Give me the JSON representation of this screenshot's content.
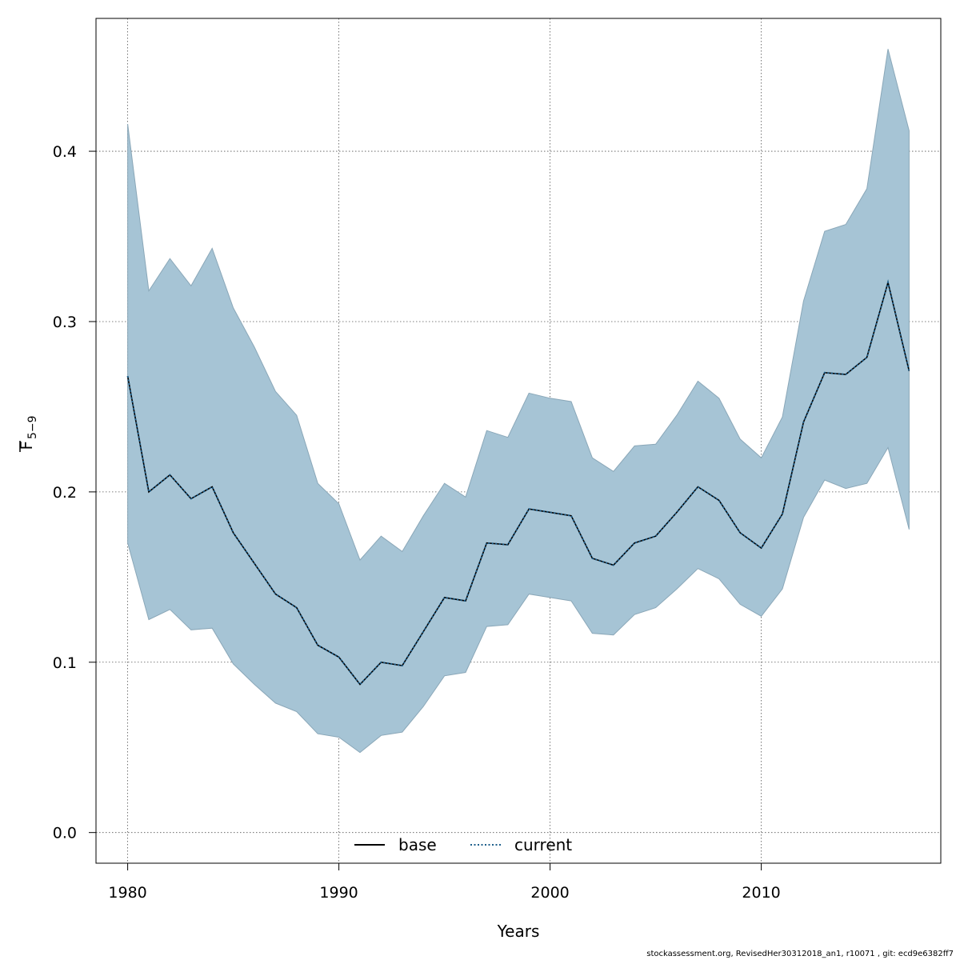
{
  "chart_data": {
    "type": "line",
    "title": "",
    "xlabel": "Years",
    "ylabel_main": "F",
    "ylabel_sub": "5−9",
    "xlim": [
      1978.5,
      2018.5
    ],
    "ylim": [
      -0.018,
      0.478
    ],
    "xticks": [
      1980,
      1990,
      2000,
      2010
    ],
    "yticks": [
      0.0,
      0.1,
      0.2,
      0.3,
      0.4
    ],
    "ytick_labels": [
      "0.0",
      "0.1",
      "0.2",
      "0.3",
      "0.4"
    ],
    "grid": true,
    "legend_position": "bottom-center",
    "x": [
      1980,
      1981,
      1982,
      1983,
      1984,
      1985,
      1986,
      1987,
      1988,
      1989,
      1990,
      1991,
      1992,
      1993,
      1994,
      1995,
      1996,
      1997,
      1998,
      1999,
      2000,
      2001,
      2002,
      2003,
      2004,
      2005,
      2006,
      2007,
      2008,
      2009,
      2010,
      2011,
      2012,
      2013,
      2014,
      2015,
      2016,
      2017
    ],
    "band_upper": [
      0.416,
      0.318,
      0.337,
      0.321,
      0.343,
      0.308,
      0.285,
      0.259,
      0.245,
      0.205,
      0.193,
      0.16,
      0.174,
      0.165,
      0.186,
      0.205,
      0.197,
      0.236,
      0.232,
      0.258,
      0.255,
      0.253,
      0.22,
      0.212,
      0.227,
      0.228,
      0.245,
      0.265,
      0.255,
      0.231,
      0.22,
      0.244,
      0.312,
      0.353,
      0.357,
      0.378,
      0.46,
      0.412
    ],
    "band_lower": [
      0.17,
      0.125,
      0.131,
      0.119,
      0.12,
      0.099,
      0.087,
      0.076,
      0.071,
      0.058,
      0.056,
      0.047,
      0.057,
      0.059,
      0.074,
      0.092,
      0.094,
      0.121,
      0.122,
      0.14,
      0.138,
      0.136,
      0.117,
      0.116,
      0.128,
      0.132,
      0.143,
      0.155,
      0.149,
      0.134,
      0.127,
      0.143,
      0.185,
      0.207,
      0.202,
      0.205,
      0.226,
      0.178
    ],
    "series": [
      {
        "name": "base",
        "color": "#000000",
        "dash": "solid",
        "values": [
          0.268,
          0.2,
          0.21,
          0.196,
          0.203,
          0.176,
          0.158,
          0.14,
          0.132,
          0.11,
          0.103,
          0.087,
          0.1,
          0.098,
          0.118,
          0.138,
          0.136,
          0.17,
          0.169,
          0.19,
          0.188,
          0.186,
          0.161,
          0.157,
          0.17,
          0.174,
          0.188,
          0.203,
          0.195,
          0.176,
          0.167,
          0.187,
          0.241,
          0.27,
          0.269,
          0.279,
          0.323,
          0.271
        ]
      },
      {
        "name": "current",
        "color": "#1f5f8b",
        "dash": "dotted",
        "values": [
          0.268,
          0.2,
          0.21,
          0.196,
          0.203,
          0.176,
          0.158,
          0.14,
          0.132,
          0.11,
          0.103,
          0.087,
          0.1,
          0.098,
          0.118,
          0.138,
          0.136,
          0.17,
          0.169,
          0.19,
          0.188,
          0.186,
          0.161,
          0.157,
          0.17,
          0.174,
          0.188,
          0.203,
          0.195,
          0.176,
          0.167,
          0.187,
          0.241,
          0.27,
          0.269,
          0.279,
          0.323,
          0.271
        ]
      }
    ],
    "colors": {
      "band_fill": "#a6c4d5",
      "band_stroke": "#8aa7b8",
      "grid": "#555555",
      "axis": "#000000"
    }
  },
  "footer": "stockassessment.org, RevisedHer30312018_an1, r10071 , git: ecd9e6382ff7"
}
